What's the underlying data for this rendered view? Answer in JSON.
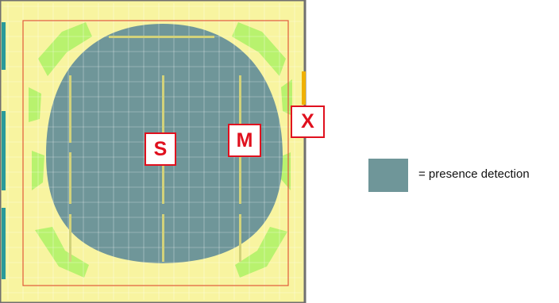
{
  "markers": {
    "s": "S",
    "m": "M",
    "x": "X"
  },
  "legend": {
    "swatch_color": "#6f9699",
    "label": "= presence detection"
  },
  "colors": {
    "floor": "#f8f4a0",
    "detection_zone": "#6f9699",
    "fringe": "#b8f26e",
    "boundary_line": "#e05a3a",
    "marker_border": "#e0101e"
  }
}
